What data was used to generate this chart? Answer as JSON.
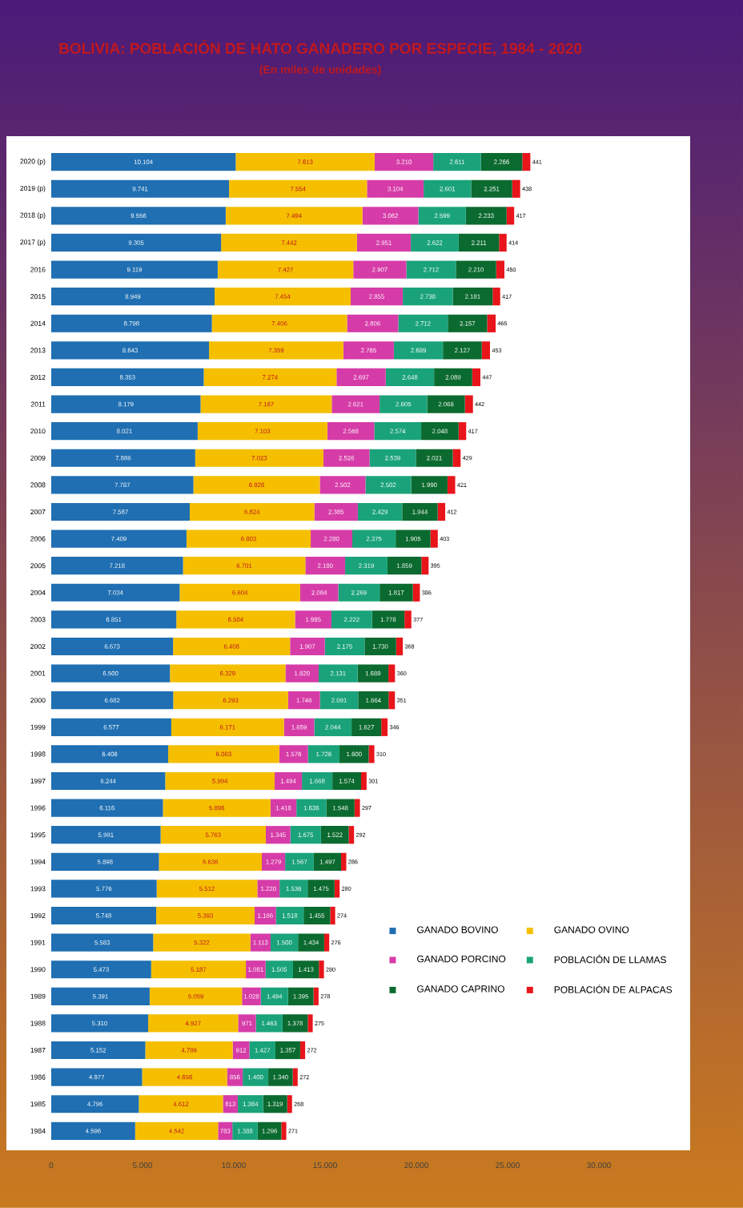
{
  "chart_data": {
    "type": "bar",
    "orientation": "horizontal",
    "stacked": true,
    "title": "BOLIVIA: POBLACIÓN DE HATO GANADERO POR ESPECIE, 1984 - 2020",
    "subtitle": "(En miles de unidades)",
    "categories": [
      "2020 (p)",
      "2019 (p)",
      "2018 (p)",
      "2017 (p)",
      "2016",
      "2015",
      "2014",
      "2013",
      "2012",
      "2011",
      "2010",
      "2009",
      "2008",
      "2007",
      "2006",
      "2005",
      "2004",
      "2003",
      "2002",
      "2001",
      "2000",
      "1999",
      "1998",
      "1997",
      "1996",
      "1995",
      "1994",
      "1993",
      "1992",
      "1991",
      "1990",
      "1989",
      "1988",
      "1987",
      "1986",
      "1985",
      "1984"
    ],
    "series": [
      {
        "name": "GANADO BOVINO",
        "color": "#1f6fb2",
        "values": [
          10104,
          9741,
          9556,
          9305,
          9119,
          8949,
          8798,
          8643,
          8353,
          8179,
          8021,
          7886,
          7787,
          7587,
          7409,
          7218,
          7034,
          6851,
          6673,
          6500,
          6682,
          6577,
          6406,
          6244,
          6116,
          5991,
          5898,
          5776,
          5748,
          5583,
          5473,
          5391,
          5310,
          5152,
          4977,
          4796,
          4596
        ],
        "value_labels": [
          "10.104",
          "9.741",
          "9.556",
          "9.305",
          "9.119",
          "8.949",
          "8.798",
          "8.643",
          "8.353",
          "8.179",
          "8.021",
          "7.886",
          "7.787",
          "7.587",
          "7.409",
          "7.218",
          "7.034",
          "6.851",
          "6.673",
          "6.500",
          "6.682",
          "6.577",
          "6.406",
          "6.244",
          "6.116",
          "5.991",
          "5.898",
          "5.776",
          "5.748",
          "5.583",
          "5.473",
          "5.391",
          "5.310",
          "5.152",
          "4.977",
          "4.796",
          "4.596"
        ]
      },
      {
        "name": "GANADO OVINO",
        "color": "#f5bf00",
        "values": [
          7613,
          7554,
          7494,
          7442,
          7427,
          7454,
          7406,
          7359,
          7274,
          7187,
          7103,
          7023,
          6926,
          6824,
          6803,
          6701,
          6604,
          6504,
          6408,
          6329,
          6293,
          6171,
          6083,
          5994,
          5896,
          5763,
          5636,
          5512,
          5393,
          5322,
          5187,
          5059,
          4927,
          4789,
          4656,
          4612,
          4542
        ],
        "value_labels": [
          "7.613",
          "7.554",
          "7.494",
          "7.442",
          "7.427",
          "7.454",
          "7.406",
          "7.359",
          "7.274",
          "7.187",
          "7.103",
          "7.023",
          "6.926",
          "6.824",
          "6.803",
          "6.701",
          "6.604",
          "6.504",
          "6.408",
          "6.329",
          "6.293",
          "6.171",
          "6.083",
          "5.994",
          "5.896",
          "5.763",
          "5.636",
          "5.512",
          "5.393",
          "5.322",
          "5.187",
          "5.059",
          "4.927",
          "4.789",
          "4.656",
          "4.612",
          "4.542"
        ]
      },
      {
        "name": "GANADO PORCINO",
        "color": "#d63ca8",
        "values": [
          3210,
          3104,
          3062,
          2951,
          2907,
          2855,
          2806,
          2765,
          2697,
          2621,
          2568,
          2526,
          2502,
          2385,
          2280,
          2180,
          2084,
          1995,
          1907,
          1820,
          1746,
          1659,
          1576,
          1494,
          1418,
          1345,
          1279,
          1220,
          1166,
          1113,
          1081,
          1028,
          971,
          912,
          856,
          813,
          783
        ],
        "value_labels": [
          "3.210",
          "3.104",
          "3.062",
          "2.951",
          "2.907",
          "2.855",
          "2.806",
          "2.765",
          "2.697",
          "2.621",
          "2.568",
          "2.526",
          "2.502",
          "2.385",
          "2.280",
          "2.180",
          "2.084",
          "1.995",
          "1.907",
          "1.820",
          "1.746",
          "1.659",
          "1.576",
          "1.494",
          "1.418",
          "1.345",
          "1.279",
          "1.220",
          "1.166",
          "1.113",
          "1.081",
          "1.028",
          "971",
          "912",
          "856",
          "813",
          "783"
        ]
      },
      {
        "name": "POBLACIÓN DE LLAMAS",
        "color": "#1aa37a",
        "values": [
          2611,
          2601,
          2599,
          2622,
          2712,
          2738,
          2712,
          2689,
          2648,
          2605,
          2574,
          2539,
          2502,
          2429,
          2375,
          2319,
          2269,
          2222,
          2175,
          2131,
          2091,
          2044,
          1726,
          1668,
          1636,
          1675,
          1567,
          1536,
          1518,
          1500,
          1505,
          1494,
          1463,
          1427,
          1400,
          1384,
          1388
        ],
        "value_labels": [
          "2.611",
          "2.601",
          "2.599",
          "2.622",
          "2.712",
          "2.738",
          "2.712",
          "2.689",
          "2.648",
          "2.605",
          "2.574",
          "2.539",
          "2.502",
          "2.429",
          "2.375",
          "2.319",
          "2.269",
          "2.222",
          "2.175",
          "2.131",
          "2.091",
          "2.044",
          "1.726",
          "1.668",
          "1.636",
          "1.675",
          "1.567",
          "1.536",
          "1.518",
          "1.500",
          "1.505",
          "1.494",
          "1.463",
          "1.427",
          "1.400",
          "1.384",
          "1.388"
        ]
      },
      {
        "name": "GANADO CAPRINO",
        "color": "#0b6a2f",
        "values": [
          2266,
          2251,
          2233,
          2211,
          2210,
          2181,
          2157,
          2127,
          2089,
          2068,
          2048,
          2021,
          1990,
          1944,
          1905,
          1859,
          1817,
          1778,
          1730,
          1689,
          1664,
          1627,
          1600,
          1574,
          1548,
          1522,
          1497,
          1475,
          1455,
          1434,
          1413,
          1395,
          1378,
          1357,
          1340,
          1319,
          1296
        ],
        "value_labels": [
          "2.266",
          "2.251",
          "2.233",
          "2.211",
          "2.210",
          "2.181",
          "2.157",
          "2.127",
          "2.089",
          "2.068",
          "2.048",
          "2.021",
          "1.990",
          "1.944",
          "1.905",
          "1.859",
          "1.817",
          "1.778",
          "1.730",
          "1.689",
          "1.664",
          "1.627",
          "1.600",
          "1.574",
          "1.548",
          "1.522",
          "1.497",
          "1.475",
          "1.455",
          "1.434",
          "1.413",
          "1.395",
          "1.378",
          "1.357",
          "1.340",
          "1.319",
          "1.296"
        ]
      },
      {
        "name": "POBLACIÓN DE ALPACAS",
        "color": "#e8151b",
        "values": [
          441,
          438,
          417,
          414,
          450,
          417,
          465,
          453,
          447,
          442,
          417,
          429,
          421,
          412,
          403,
          395,
          386,
          377,
          368,
          360,
          351,
          346,
          310,
          301,
          297,
          292,
          286,
          280,
          274,
          276,
          280,
          278,
          275,
          272,
          272,
          268,
          271
        ],
        "value_labels": [
          "441",
          "438",
          "417",
          "414",
          "450",
          "417",
          "465",
          "453",
          "447",
          "442",
          "417",
          "429",
          "421",
          "412",
          "403",
          "395",
          "386",
          "377",
          "368",
          "360",
          "351",
          "346",
          "310",
          "301",
          "297",
          "292",
          "286",
          "280",
          "274",
          "276",
          "280",
          "278",
          "275",
          "272",
          "272",
          "268",
          "271"
        ]
      }
    ],
    "xlim": [
      0,
      35000
    ],
    "xticks": [
      0,
      {
        "value": 5000,
        "label": "5.000"
      },
      {
        "value": 10000,
        "label": "10.000"
      },
      {
        "value": 15000,
        "label": "15.000"
      },
      {
        "value": 20000,
        "label": "20.000"
      },
      {
        "value": 25000,
        "label": "25.000"
      },
      {
        "value": 30000,
        "label": "30.000"
      }
    ],
    "legend": "bottom right"
  }
}
